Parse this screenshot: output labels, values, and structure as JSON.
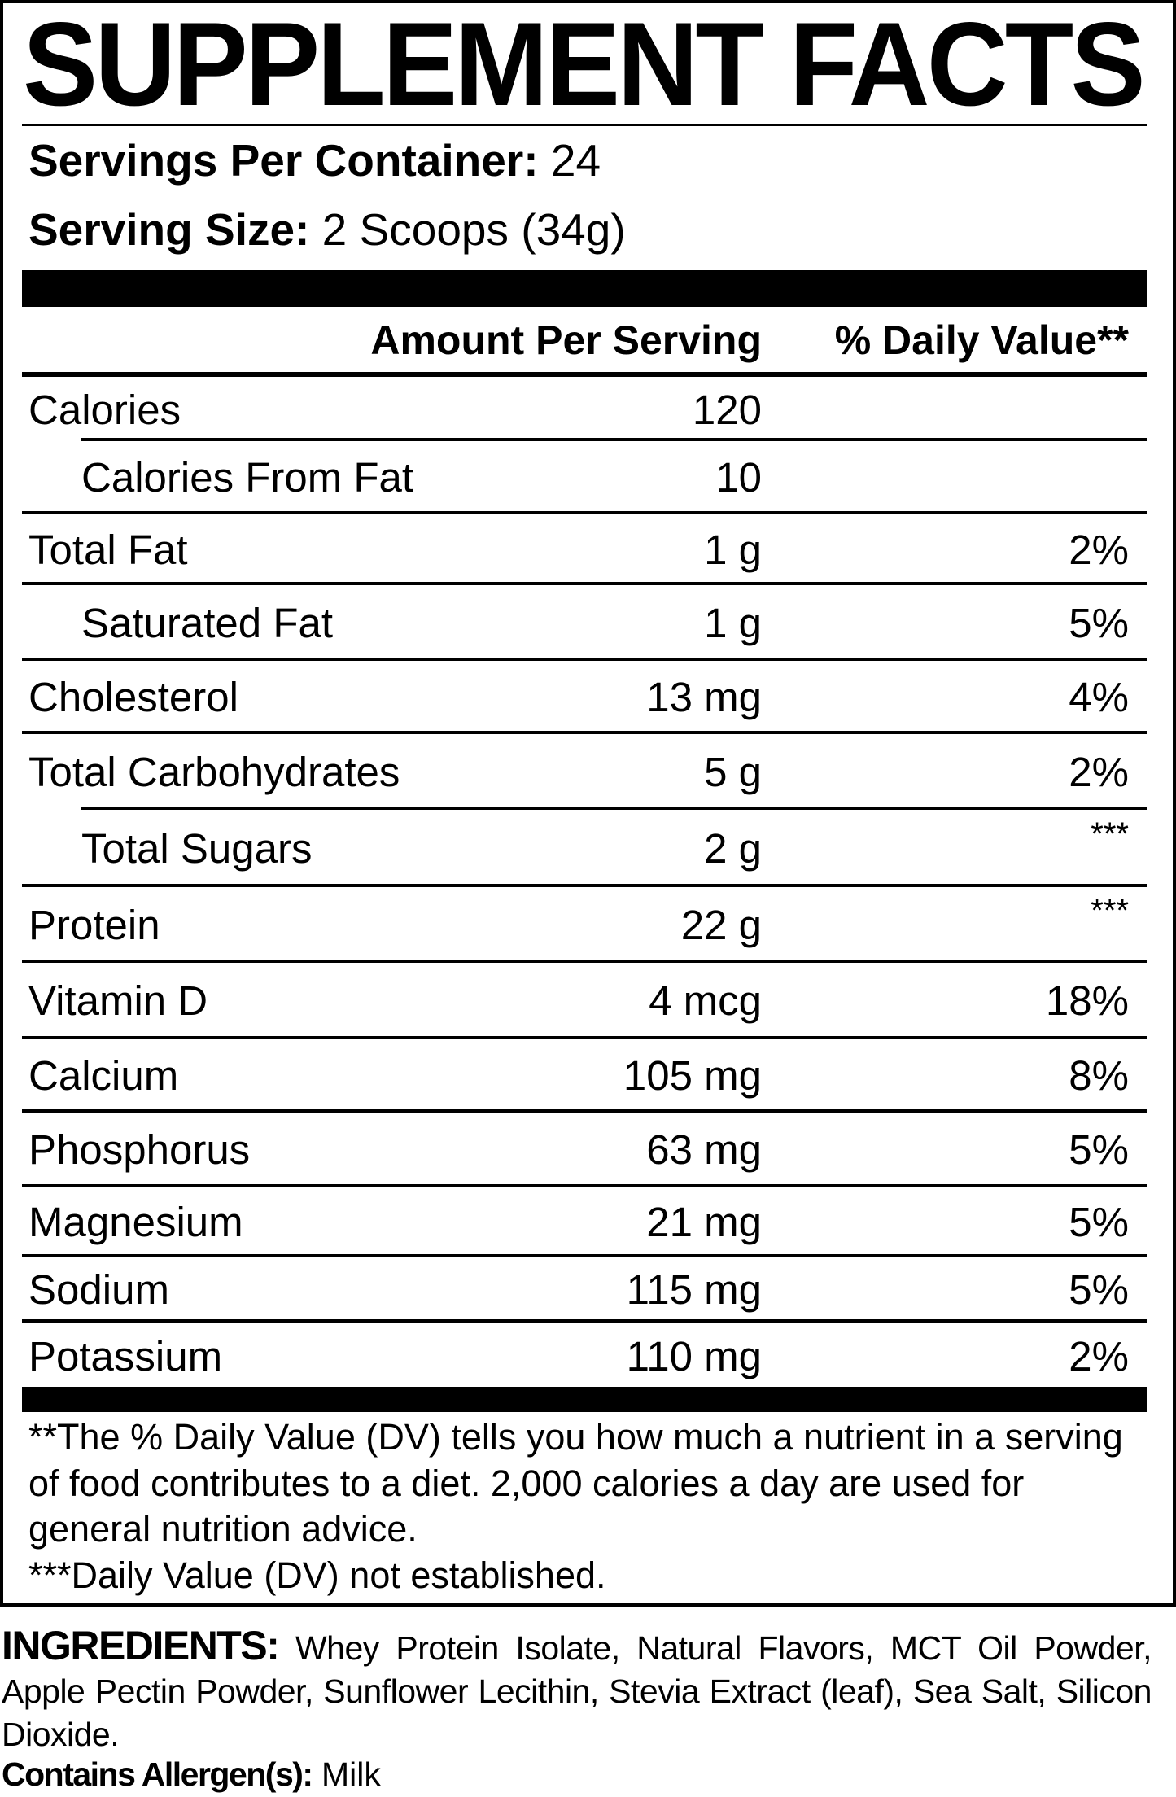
{
  "title": "SUPPLEMENT FACTS",
  "servings_per_container": {
    "label": "Servings Per Container:",
    "value": "24"
  },
  "serving_size": {
    "label": "Serving Size:",
    "value": "2 Scoops (34g)"
  },
  "headers": {
    "amount": "Amount Per Serving",
    "dv": "% Daily Value**"
  },
  "rows": [
    {
      "name": "Calories",
      "amount": "120",
      "dv": ""
    },
    {
      "name": "Calories From Fat",
      "amount": "10",
      "dv": ""
    },
    {
      "name": "Total Fat",
      "amount": "1 g",
      "dv": "2%"
    },
    {
      "name": "Saturated Fat",
      "amount": "1 g",
      "dv": "5%"
    },
    {
      "name": "Cholesterol",
      "amount": "13 mg",
      "dv": "4%"
    },
    {
      "name": "Total Carbohydrates",
      "amount": "5 g",
      "dv": "2%"
    },
    {
      "name": "Total Sugars",
      "amount": "2 g",
      "dv": "***"
    },
    {
      "name": "Protein",
      "amount": "22 g",
      "dv": "***"
    },
    {
      "name": "Vitamin D",
      "amount": "4 mcg",
      "dv": "18%"
    },
    {
      "name": "Calcium",
      "amount": "105 mg",
      "dv": "8%"
    },
    {
      "name": "Phosphorus",
      "amount": "63 mg",
      "dv": "5%"
    },
    {
      "name": "Magnesium",
      "amount": "21 mg",
      "dv": "5%"
    },
    {
      "name": "Sodium",
      "amount": "115 mg",
      "dv": "5%"
    },
    {
      "name": "Potassium",
      "amount": "110 mg",
      "dv": "2%"
    }
  ],
  "footnotes": [
    "**The % Daily Value (DV) tells you how much a nutrient in a serving of food contributes to a diet. 2,000 calories a day are used for general nutrition advice.",
    "***Daily Value (DV) not established."
  ],
  "ingredients": {
    "label": "INGREDIENTS:",
    "text": "Whey Protein Isolate, Natural Flavors, MCT Oil Powder, Apple Pectin Powder, Sunflower Lecithin, Stevia Extract (leaf), Sea Salt, Silicon Dioxide."
  },
  "allergens": {
    "label": "Contains Allergen(s):",
    "text": "Milk"
  }
}
